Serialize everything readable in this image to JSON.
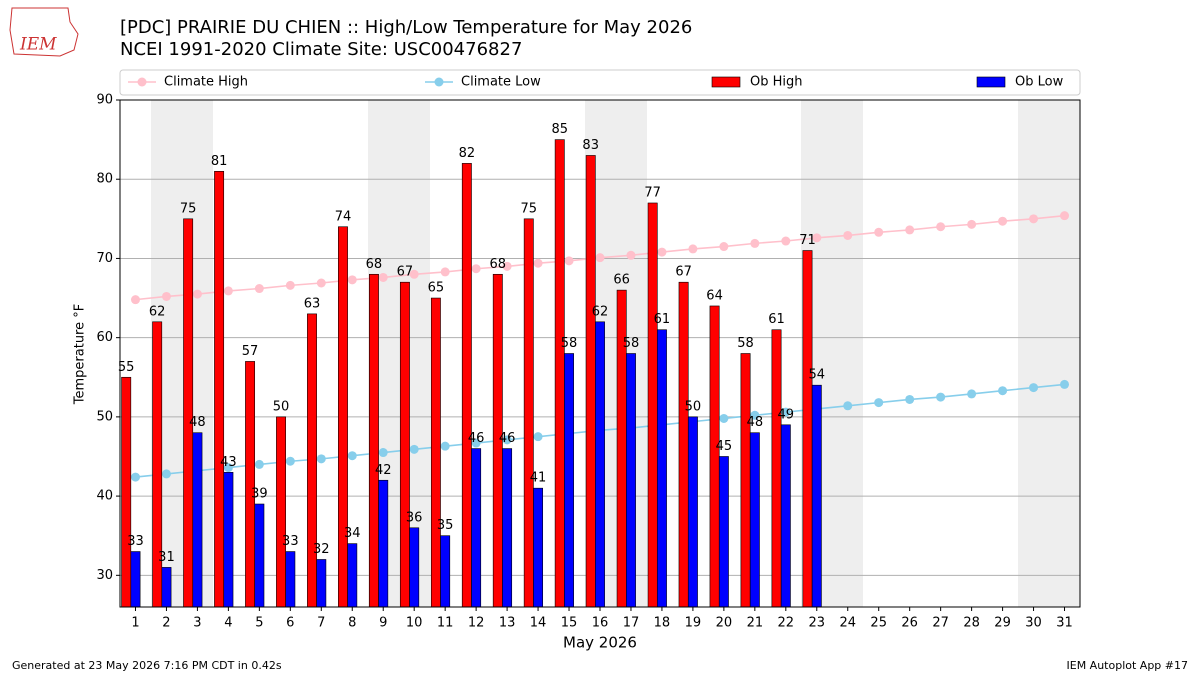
{
  "logo": "IEM",
  "footer": {
    "left": "Generated at 23 May 2026 7:16 PM CDT in 0.42s",
    "right": "IEM Autoplot App #17"
  },
  "chart_data": {
    "type": "bar",
    "title": "[PDC] PRAIRIE DU CHIEN :: High/Low Temperature for May 2026",
    "subtitle": "NCEI 1991-2020 Climate Site: USC00476827",
    "xlabel": "May 2026",
    "ylabel": "Temperature °F",
    "x": [
      1,
      2,
      3,
      4,
      5,
      6,
      7,
      8,
      9,
      10,
      11,
      12,
      13,
      14,
      15,
      16,
      17,
      18,
      19,
      20,
      21,
      22,
      23,
      24,
      25,
      26,
      27,
      28,
      29,
      30,
      31
    ],
    "xlim": [
      0.5,
      31.5
    ],
    "xticks": [
      1,
      2,
      3,
      4,
      5,
      6,
      7,
      8,
      9,
      10,
      11,
      12,
      13,
      14,
      15,
      16,
      17,
      18,
      19,
      20,
      21,
      22,
      23,
      24,
      25,
      26,
      27,
      28,
      29,
      30,
      31
    ],
    "ylim": [
      26,
      90
    ],
    "yticks": [
      30,
      40,
      50,
      60,
      70,
      80,
      90
    ],
    "grid": true,
    "legend": "top",
    "series": [
      {
        "name": "Climate High",
        "kind": "line",
        "color": "#ffc0cb",
        "values": [
          64.8,
          65.2,
          65.5,
          65.9,
          66.2,
          66.6,
          66.9,
          67.3,
          67.6,
          68.0,
          68.3,
          68.7,
          69.0,
          69.4,
          69.7,
          70.1,
          70.4,
          70.8,
          71.2,
          71.5,
          71.9,
          72.2,
          72.6,
          72.9,
          73.3,
          73.6,
          74.0,
          74.3,
          74.7,
          75.0,
          75.4
        ]
      },
      {
        "name": "Climate Low",
        "kind": "line",
        "color": "#87ceeb",
        "values": [
          42.4,
          42.8,
          43.2,
          43.6,
          44.0,
          44.4,
          44.7,
          45.1,
          45.5,
          45.9,
          46.3,
          46.7,
          47.1,
          47.5,
          47.9,
          48.3,
          48.6,
          49.0,
          49.4,
          49.8,
          50.2,
          50.6,
          51.0,
          51.4,
          51.8,
          52.2,
          52.5,
          52.9,
          53.3,
          53.7,
          54.1
        ]
      },
      {
        "name": "Ob High",
        "kind": "bar",
        "color": "#ff0000",
        "values": [
          55,
          62,
          75,
          81,
          57,
          50,
          63,
          74,
          68,
          67,
          65,
          82,
          68,
          75,
          85,
          83,
          66,
          77,
          67,
          64,
          58,
          61,
          71,
          null,
          null,
          null,
          null,
          null,
          null,
          null,
          null
        ]
      },
      {
        "name": "Ob Low",
        "kind": "bar",
        "color": "#0000ff",
        "values": [
          33,
          31,
          48,
          43,
          39,
          33,
          32,
          34,
          42,
          36,
          35,
          46,
          46,
          41,
          58,
          62,
          58,
          61,
          50,
          45,
          48,
          49,
          54,
          null,
          null,
          null,
          null,
          null,
          null,
          null,
          null
        ]
      }
    ]
  }
}
